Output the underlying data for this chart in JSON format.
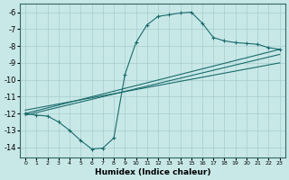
{
  "xlabel": "Humidex (Indice chaleur)",
  "bg_color": "#c8e8e8",
  "grid_color": "#a8cccc",
  "line_color": "#1a6b6b",
  "xlim": [
    -0.5,
    23.5
  ],
  "ylim": [
    -14.6,
    -5.5
  ],
  "yticks": [
    -6,
    -7,
    -8,
    -9,
    -10,
    -11,
    -12,
    -13,
    -14
  ],
  "xticks": [
    0,
    1,
    2,
    3,
    4,
    5,
    6,
    7,
    8,
    9,
    10,
    11,
    12,
    13,
    14,
    15,
    16,
    17,
    18,
    19,
    20,
    21,
    22,
    23
  ],
  "curve_wavy_x": [
    0,
    1,
    2,
    3,
    4,
    5,
    6,
    7,
    8,
    9,
    10,
    11,
    12,
    13,
    14,
    15,
    16,
    17,
    18,
    19,
    20,
    21,
    22,
    23
  ],
  "curve_wavy_y": [
    -12.0,
    -12.1,
    -12.15,
    -12.5,
    -13.0,
    -13.6,
    -14.1,
    -14.05,
    -13.45,
    -9.7,
    -7.8,
    -6.75,
    -6.25,
    -6.15,
    -6.05,
    -6.0,
    -6.65,
    -7.5,
    -7.7,
    -7.8,
    -7.85,
    -7.9,
    -8.1,
    -8.2
  ],
  "line1_x": [
    0,
    23
  ],
  "line1_y": [
    -12.0,
    -8.2
  ],
  "line2_x": [
    0,
    23
  ],
  "line2_y": [
    -12.1,
    -8.5
  ],
  "line3_x": [
    0,
    23
  ],
  "line3_y": [
    -11.8,
    -9.0
  ]
}
